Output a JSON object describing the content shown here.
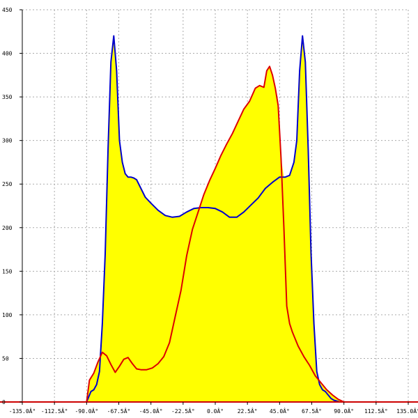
{
  "chart_data": {
    "type": "area",
    "title": "",
    "xlabel": "",
    "ylabel": "",
    "xlim": [
      -135,
      135
    ],
    "ylim": [
      0,
      450
    ],
    "grid": true,
    "fill_color": "#ffff00",
    "x_ticks": [
      -135,
      -112.5,
      -90,
      -67.5,
      -45,
      -22.5,
      0,
      22.5,
      45,
      67.5,
      90,
      112.5,
      135
    ],
    "x_tick_labels": [
      "-135.0Â°",
      "-112.5Â°",
      "-90.0Â°",
      "-67.5Â°",
      "-45.0Â°",
      "-22.5Â°",
      "0.0Â°",
      "22.5Â°",
      "45.0Â°",
      "67.5Â°",
      "90.0Â°",
      "112.5Â°",
      "135.0Â°"
    ],
    "y_ticks": [
      0,
      50,
      100,
      150,
      200,
      250,
      300,
      350,
      400,
      450
    ],
    "y_tick_labels": [
      "0",
      "50",
      "100",
      "150",
      "200",
      "250",
      "300",
      "350",
      "400",
      "450"
    ],
    "series": [
      {
        "color": "#0000cc",
        "filled": true,
        "x": [
          -90,
          -87,
          -85,
          -83,
          -81,
          -79,
          -77,
          -75,
          -73,
          -71,
          -69,
          -67,
          -65,
          -63,
          -61,
          -59,
          -57,
          -55,
          -52,
          -49,
          -45,
          -40,
          -35,
          -30,
          -25,
          -20,
          -15,
          -10,
          -5,
          0,
          5,
          10,
          15,
          20,
          25,
          30,
          35,
          40,
          45,
          49,
          52,
          55,
          57,
          59,
          61,
          63,
          65,
          67,
          69,
          71,
          73,
          75,
          77,
          79,
          81,
          83,
          85,
          87,
          90
        ],
        "y": [
          0,
          12,
          14,
          20,
          35,
          90,
          170,
          290,
          390,
          420,
          380,
          300,
          275,
          262,
          258,
          258,
          257,
          255,
          245,
          235,
          228,
          220,
          214,
          212,
          213,
          218,
          222,
          223,
          223,
          222,
          218,
          212,
          212,
          218,
          226,
          234,
          245,
          252,
          258,
          258,
          260,
          275,
          300,
          380,
          420,
          390,
          290,
          170,
          90,
          35,
          20,
          14,
          12,
          8,
          4,
          2,
          1,
          0,
          0
        ]
      },
      {
        "color": "#dd0000",
        "filled": true,
        "x": [
          -90,
          -88,
          -85,
          -82,
          -79,
          -76,
          -73,
          -70,
          -67,
          -64,
          -61,
          -58,
          -55,
          -52,
          -48,
          -44,
          -40,
          -36,
          -32,
          -28,
          -24,
          -20,
          -16,
          -12,
          -8,
          -4,
          0,
          4,
          8,
          12,
          16,
          20,
          24,
          28,
          31,
          34,
          36,
          38,
          40,
          42,
          44,
          46,
          48,
          50,
          52,
          54,
          56,
          58,
          62,
          66,
          70,
          74,
          78,
          82,
          86,
          90
        ],
        "y": [
          0,
          25,
          33,
          46,
          57,
          53,
          43,
          34,
          41,
          49,
          51,
          44,
          38,
          37,
          37,
          39,
          44,
          52,
          68,
          98,
          128,
          168,
          198,
          218,
          238,
          254,
          268,
          283,
          296,
          308,
          322,
          336,
          345,
          360,
          363,
          361,
          380,
          385,
          375,
          360,
          340,
          280,
          200,
          110,
          90,
          80,
          72,
          64,
          52,
          42,
          30,
          22,
          14,
          8,
          3,
          0
        ]
      }
    ]
  }
}
